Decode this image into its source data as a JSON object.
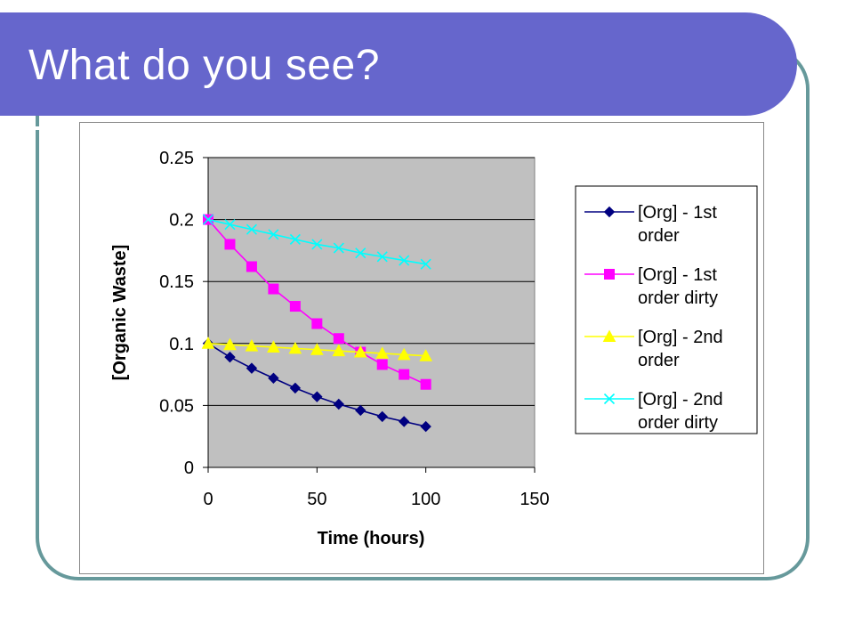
{
  "slide": {
    "title": "What do you see?",
    "colors": {
      "title_bar": "#6666cc",
      "frame": "#66999b",
      "plot_area": "#c0c0c0"
    }
  },
  "chart_data": {
    "type": "line",
    "title": "",
    "xlabel": "Time (hours)",
    "ylabel": "[Organic Waste]",
    "xlim": [
      0,
      150
    ],
    "ylim": [
      0,
      0.25
    ],
    "x_ticks": [
      "0",
      "50",
      "100",
      "150"
    ],
    "y_ticks": [
      "0",
      "0.05",
      "0.1",
      "0.15",
      "0.2",
      "0.25"
    ],
    "grid": "horizontal",
    "legend_position": "right",
    "x": [
      0,
      10,
      20,
      30,
      40,
      50,
      60,
      70,
      80,
      90,
      100
    ],
    "series": [
      {
        "name": "[Org] - 1st order",
        "color": "#000080",
        "marker": "diamond",
        "values": [
          0.1,
          0.089,
          0.08,
          0.072,
          0.064,
          0.057,
          0.051,
          0.046,
          0.041,
          0.037,
          0.033
        ]
      },
      {
        "name": "[Org] - 1st order dirty",
        "color": "#ff00ff",
        "marker": "square",
        "values": [
          0.2,
          0.18,
          0.162,
          0.144,
          0.13,
          0.116,
          0.104,
          0.093,
          0.083,
          0.075,
          0.067
        ]
      },
      {
        "name": "[Org] - 2nd order",
        "color": "#ffff00",
        "marker": "triangle",
        "values": [
          0.1,
          0.099,
          0.098,
          0.097,
          0.096,
          0.095,
          0.094,
          0.093,
          0.092,
          0.091,
          0.09
        ]
      },
      {
        "name": "[Org] - 2nd order dirty",
        "color": "#00ffff",
        "marker": "x",
        "values": [
          0.2,
          0.196,
          0.192,
          0.188,
          0.184,
          0.18,
          0.177,
          0.173,
          0.17,
          0.167,
          0.164
        ]
      }
    ]
  }
}
